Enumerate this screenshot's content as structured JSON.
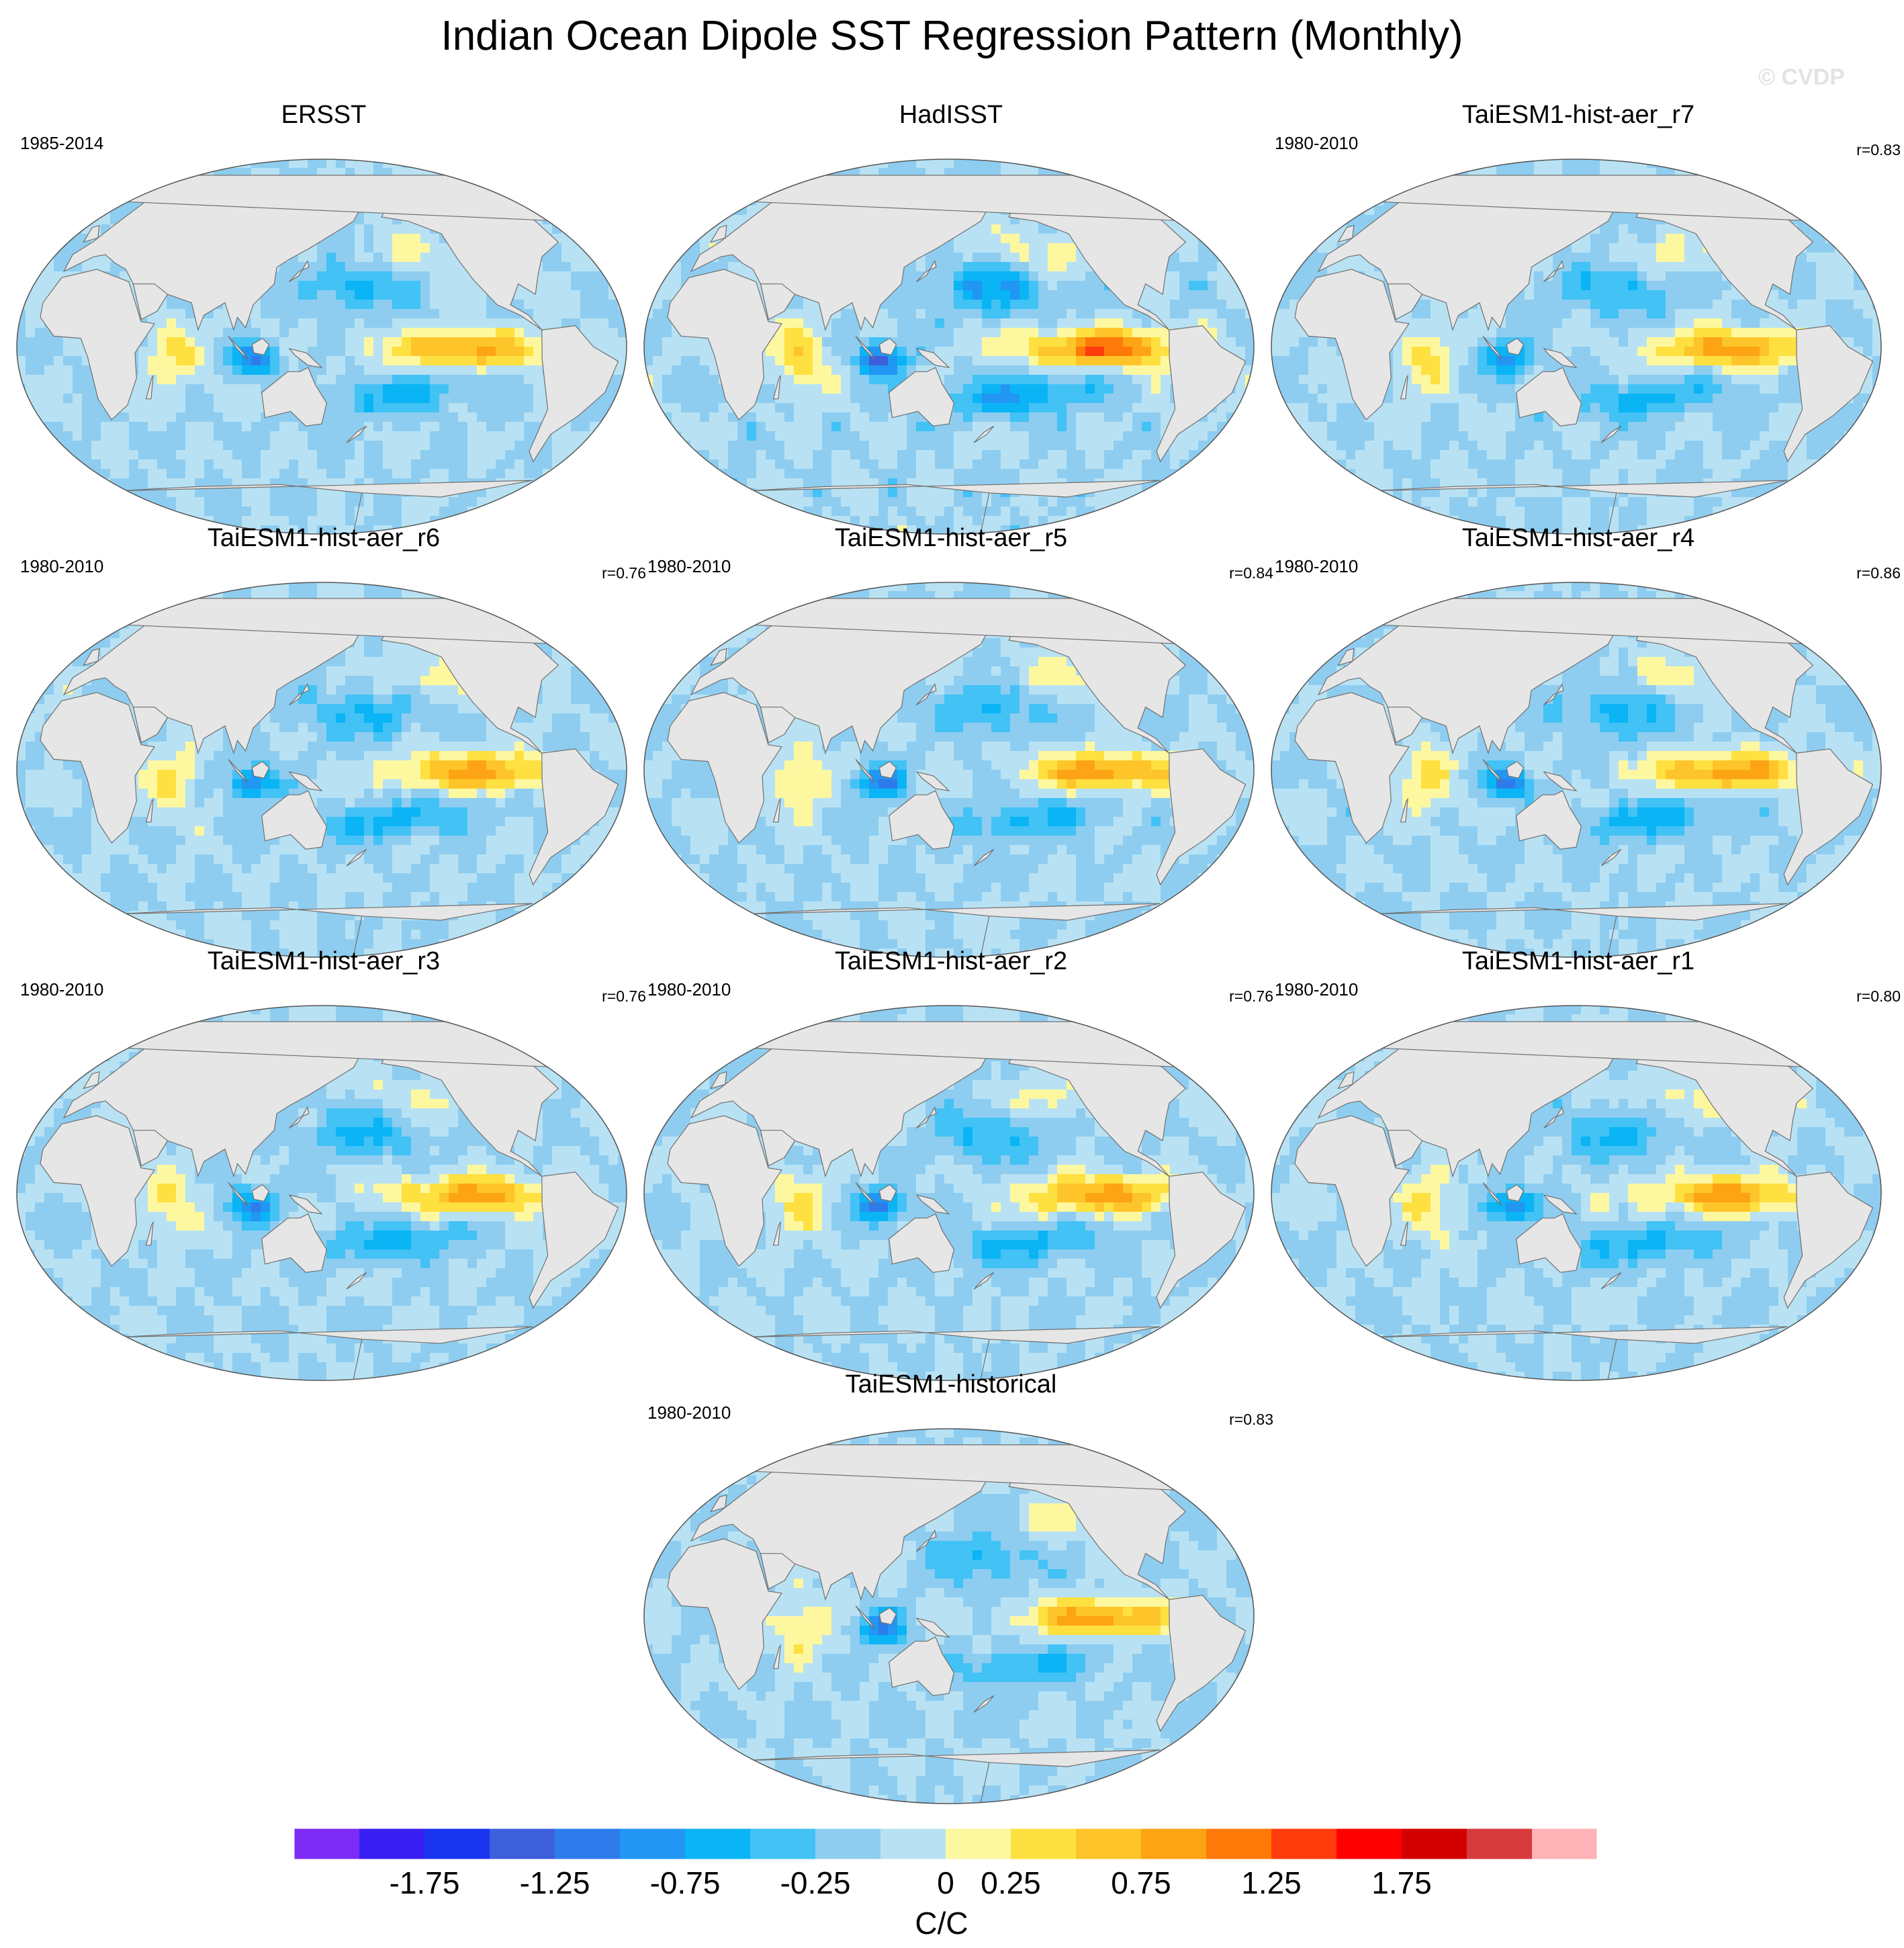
{
  "title": "Indian Ocean Dipole SST Regression Pattern (Monthly)",
  "watermark": "© CVDP",
  "colors": {
    "land": "#e6e6e6",
    "coast": "#707070",
    "palette": [
      "#7b2cf4",
      "#3a1ff4",
      "#1a35f0",
      "#3e5fdc",
      "#2e7cec",
      "#2196f3",
      "#0ab4f5",
      "#42c2f5",
      "#8ecdf0",
      "#b8e2f4",
      "#fdf7a0",
      "#fee040",
      "#fdc52a",
      "#fda414",
      "#fe7a08",
      "#ff3c0c",
      "#ff0000",
      "#d20000",
      "#d73a3a",
      "#ffb4b8"
    ]
  },
  "colorbar": {
    "units": "C/C",
    "tick_labels": [
      "-1.75",
      "-1.25",
      "-0.75",
      "-0.25",
      "0",
      "0.25",
      "0.75",
      "1.25",
      "1.75"
    ]
  },
  "panels": [
    {
      "title": "ERSST",
      "years": "1985-2014",
      "r": "",
      "variant": 0,
      "strength": 0.95
    },
    {
      "title": "HadISST",
      "years": "",
      "r": "",
      "variant": 1,
      "strength": 1.25
    },
    {
      "title": "TaiESM1-hist-aer_r7",
      "years": "1980-2010",
      "r": "r=0.83",
      "variant": 2,
      "strength": 1.0
    },
    {
      "title": "TaiESM1-hist-aer_r6",
      "years": "1980-2010",
      "r": "r=0.76",
      "variant": 3,
      "strength": 1.0
    },
    {
      "title": "TaiESM1-hist-aer_r5",
      "years": "1980-2010",
      "r": "r=0.84",
      "variant": 4,
      "strength": 1.0
    },
    {
      "title": "TaiESM1-hist-aer_r4",
      "years": "1980-2010",
      "r": "r=0.86",
      "variant": 5,
      "strength": 1.0
    },
    {
      "title": "TaiESM1-hist-aer_r3",
      "years": "1980-2010",
      "r": "r=0.76",
      "variant": 6,
      "strength": 0.95
    },
    {
      "title": "TaiESM1-hist-aer_r2",
      "years": "1980-2010",
      "r": "r=0.76",
      "variant": 7,
      "strength": 1.0
    },
    {
      "title": "TaiESM1-hist-aer_r1",
      "years": "1980-2010",
      "r": "r=0.80",
      "variant": 8,
      "strength": 1.0
    },
    {
      "title": "TaiESM1-historical",
      "years": "1980-2010",
      "r": "r=0.83",
      "variant": 9,
      "strength": 1.0
    }
  ]
}
